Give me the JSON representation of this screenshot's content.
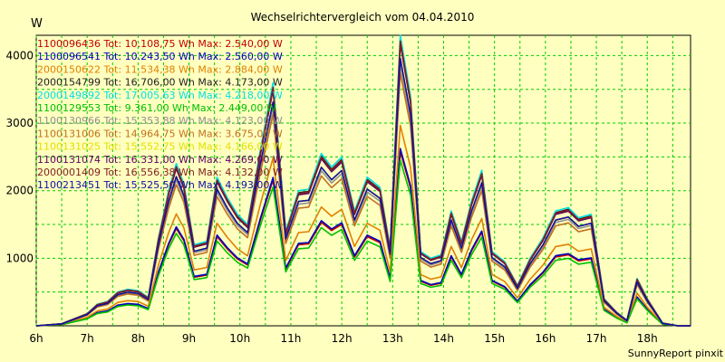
{
  "chart_data": {
    "type": "line",
    "title": "Wechselrichtervergleich vom 04.04.2010",
    "ylabel": "W",
    "xlabel": "",
    "footer": "SunnyReport pinxit",
    "ylim": [
      0,
      4300
    ],
    "xlim": [
      6,
      18.85
    ],
    "yticks": [
      1000,
      2000,
      3000,
      4000
    ],
    "xticks": [
      {
        "v": 6,
        "label": "6h"
      },
      {
        "v": 7,
        "label": "7h"
      },
      {
        "v": 8,
        "label": "8h"
      },
      {
        "v": 9,
        "label": "9h"
      },
      {
        "v": 10,
        "label": "10h"
      },
      {
        "v": 11,
        "label": "11h"
      },
      {
        "v": 12,
        "label": "12h"
      },
      {
        "v": 13,
        "label": "13h"
      },
      {
        "v": 14,
        "label": "14h"
      },
      {
        "v": 15,
        "label": "15h"
      },
      {
        "v": 16,
        "label": "16h"
      },
      {
        "v": 17,
        "label": "17h"
      },
      {
        "v": 18,
        "label": "18h"
      }
    ],
    "grid": true,
    "legend_position": "top-left",
    "x": [
      6,
      6.5,
      7,
      7.2,
      7.4,
      7.6,
      7.8,
      8,
      8.2,
      8.4,
      8.6,
      8.75,
      8.9,
      9.1,
      9.35,
      9.55,
      9.75,
      9.95,
      10.15,
      10.4,
      10.65,
      10.9,
      11.15,
      11.35,
      11.6,
      11.8,
      12,
      12.25,
      12.5,
      12.75,
      12.95,
      13.15,
      13.35,
      13.55,
      13.75,
      13.95,
      14.15,
      14.35,
      14.55,
      14.75,
      14.95,
      15.2,
      15.45,
      15.7,
      15.95,
      16.2,
      16.45,
      16.65,
      16.9,
      17.15,
      17.4,
      17.6,
      17.8,
      18,
      18.3,
      18.6,
      18.85
    ],
    "series": [
      {
        "name": "1100096436",
        "info": "Tot: 10.108,75 Wh Max: 2.540,00 W",
        "color": "#c00000",
        "scale": 0.6
      },
      {
        "name": "1100096541",
        "info": "Tot: 10.243,50 Wh Max: 2.560,00 W",
        "color": "#0000c0",
        "scale": 0.61
      },
      {
        "name": "2000150622",
        "info": "Tot: 11.534,38 Wh Max: 2.884,00 W",
        "color": "#e08000",
        "scale": 0.69
      },
      {
        "name": "2000154799",
        "info": "Tot: 16.706,00 Wh Max: 4.173,00 W",
        "color": "#202020",
        "scale": 0.985
      },
      {
        "name": "2000149892",
        "info": "Tot: 17.005,63 Wh Max: 4.218,00 W",
        "color": "#00e0e0",
        "scale": 1.0
      },
      {
        "name": "1100129553",
        "info": "Tot: 9.361,00 Wh Max: 2.449,00 W",
        "color": "#00c000",
        "scale": 0.57
      },
      {
        "name": "1100130966",
        "info": "Tot: 15.353,88 Wh Max: 4.123,00 W",
        "color": "#909090",
        "scale": 0.9
      },
      {
        "name": "1100131006",
        "info": "Tot: 14.964,75 Wh Max: 3.675,00 W",
        "color": "#c07020",
        "scale": 0.87
      },
      {
        "name": "1100131025",
        "info": "Tot: 15.552,75 Wh Max: 4.166,00 W",
        "color": "#e0e000",
        "scale": 0.92
      },
      {
        "name": "1100131074",
        "info": "Tot: 16.331,00 Wh Max: 4.269,00 W",
        "color": "#600060",
        "scale": 0.97
      },
      {
        "name": "2000001409",
        "info": "Tot: 16.556,38 Wh Max: 4.132,00 W",
        "color": "#802020",
        "scale": 0.98
      },
      {
        "name": "1100213451",
        "info": "Tot: 15.525,50 Wh Max: 4.193,00 W",
        "color": "#1010a0",
        "scale": 0.92
      }
    ],
    "base_values": [
      0,
      30,
      180,
      320,
      360,
      500,
      540,
      520,
      420,
      1300,
      2000,
      2400,
      2100,
      1200,
      1250,
      2200,
      1900,
      1650,
      1500,
      2600,
      3600,
      1400,
      2000,
      2020,
      2550,
      2350,
      2500,
      1700,
      2200,
      2050,
      1150,
      4300,
      3400,
      1100,
      1000,
      1050,
      1700,
      1250,
      1850,
      2300,
      1100,
      950,
      600,
      1000,
      1300,
      1700,
      1750,
      1600,
      1650,
      400,
      200,
      80,
      700,
      400,
      40,
      0,
      0
    ]
  }
}
